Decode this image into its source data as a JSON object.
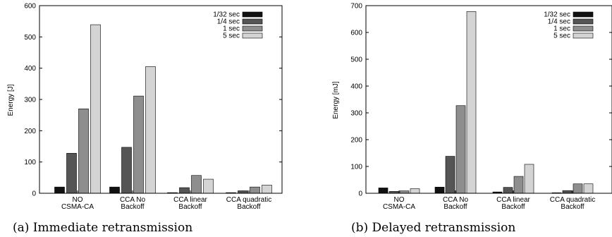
{
  "chart_data": [
    {
      "type": "bar",
      "caption": "(a) Immediate retransmission",
      "xlabel": "",
      "ylabel": "Energy [J]",
      "ylim": [
        0,
        600
      ],
      "yticks": [
        0,
        100,
        200,
        300,
        400,
        500,
        600
      ],
      "categories": [
        [
          "NO",
          "CSMA-CA"
        ],
        [
          "CCA No",
          "Backoff"
        ],
        [
          "CCA linear",
          "Backoff"
        ],
        [
          "CCA quadratic",
          "Backoff"
        ]
      ],
      "series": [
        {
          "name": "1/32 sec",
          "color": "#111111",
          "values": [
            20,
            20,
            2,
            2
          ]
        },
        {
          "name": "1/4 sec",
          "color": "#555555",
          "values": [
            128,
            147,
            18,
            8
          ]
        },
        {
          "name": "1 sec",
          "color": "#8e8e8e",
          "values": [
            270,
            311,
            57,
            20
          ]
        },
        {
          "name": "5 sec",
          "color": "#d4d4d4",
          "values": [
            539,
            405,
            45,
            26
          ]
        }
      ],
      "legend": "top-right"
    },
    {
      "type": "bar",
      "caption": "(b) Delayed retransmission",
      "xlabel": "",
      "ylabel": "Energy [mJ]",
      "ylim": [
        0,
        700
      ],
      "yticks": [
        0,
        100,
        200,
        300,
        400,
        500,
        600,
        700
      ],
      "categories": [
        [
          "NO",
          "CSMA-CA"
        ],
        [
          "CCA No",
          "Backoff"
        ],
        [
          "CCA linear",
          "Backoff"
        ],
        [
          "CCA quadratic",
          "Backoff"
        ]
      ],
      "series": [
        {
          "name": "1/32 sec",
          "color": "#111111",
          "values": [
            20,
            23,
            5,
            2
          ]
        },
        {
          "name": "1/4 sec",
          "color": "#555555",
          "values": [
            7,
            138,
            22,
            10
          ]
        },
        {
          "name": "1 sec",
          "color": "#8e8e8e",
          "values": [
            9,
            327,
            63,
            35
          ]
        },
        {
          "name": "5 sec",
          "color": "#d4d4d4",
          "values": [
            17,
            678,
            108,
            35
          ]
        }
      ],
      "legend": "top-right"
    }
  ]
}
